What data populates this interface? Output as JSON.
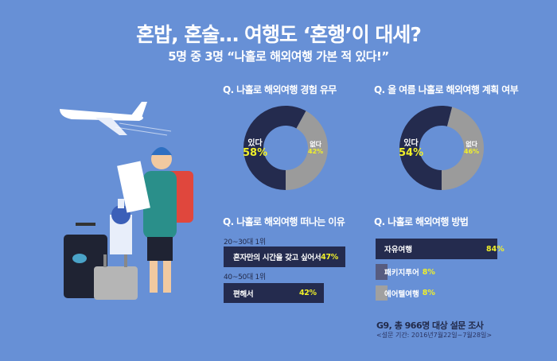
{
  "title": "혼밥, 혼술… 여행도 ‘혼행’이 대세?",
  "subtitle": "5명 중 3명 “나홀로 해외여행 가본 적 있다!”",
  "colors": {
    "background": "#6790d6",
    "dark": "#242b4e",
    "gray": "#9b9b9b",
    "highlight": "#f0f02a"
  },
  "chart_data": [
    {
      "type": "pie",
      "title": "Q. 나홀로 해외여행 경험 유무",
      "slices": [
        {
          "label": "있다",
          "value": 58,
          "display": "58%"
        },
        {
          "label": "없다",
          "value": 42,
          "display": "42%"
        }
      ]
    },
    {
      "type": "pie",
      "title": "Q. 올 여름 나홀로 해외여행 계획 여부",
      "slices": [
        {
          "label": "있다",
          "value": 54,
          "display": "54%"
        },
        {
          "label": "없다",
          "value": 46,
          "display": "46%"
        }
      ]
    },
    {
      "type": "bar",
      "title": "Q. 나홀로 해외여행 떠나는 이유",
      "groups": [
        {
          "label": "20~30대 1위",
          "category": "혼자만의 시간을 갖고 싶어서",
          "value": 47,
          "display": "47%"
        },
        {
          "label": "40~50대 1위",
          "category": "편해서",
          "value": 42,
          "display": "42%"
        }
      ]
    },
    {
      "type": "bar",
      "title": "Q. 나홀로 해외여행 방법",
      "categories": [
        "자유여행",
        "패키지투어",
        "에어텔여행"
      ],
      "values": [
        84,
        8,
        8
      ],
      "display": [
        "84%",
        "8%",
        "8%"
      ]
    }
  ],
  "footer": {
    "source": "G9, 총 966명 대상 설문 조사",
    "period": "<설문 기간: 2016년7월22일~7월28일>"
  }
}
